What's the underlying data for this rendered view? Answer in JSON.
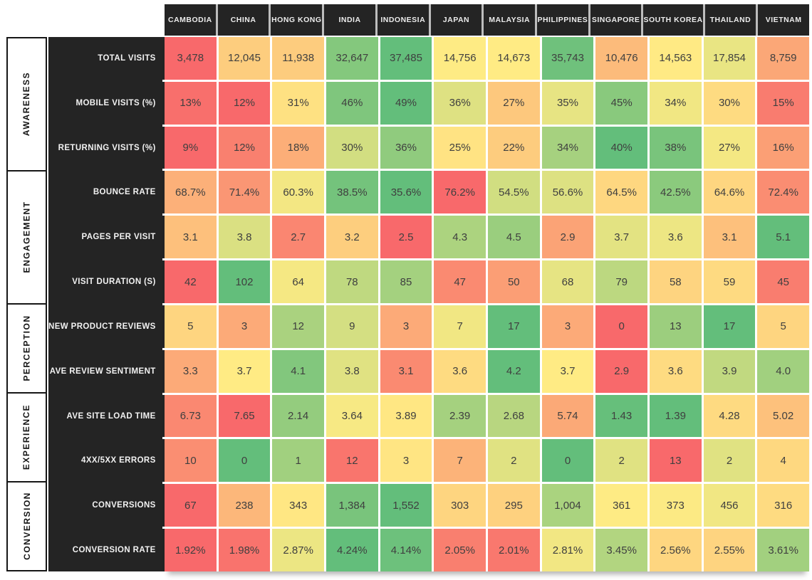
{
  "colors": {
    "background": "#ffffff",
    "panel_black": "#242424",
    "header_divider": "#bdbdbd",
    "category_border": "#161616",
    "cell_text": "#3f3f3f",
    "label_text": "#f2f2f2"
  },
  "chart_data": {
    "type": "heatmap",
    "legend_position": "none",
    "color_scale": {
      "low": "#F8696B",
      "mid": "#FFEB84",
      "high": "#63BE7B",
      "midpoint": "median",
      "note": "per-row scale; rows with better=lower use reversed scale"
    },
    "columns": [
      "CAMBODIA",
      "CHINA",
      "HONG KONG",
      "INDIA",
      "INDONESIA",
      "JAPAN",
      "MALAYSIA",
      "PHILIPPINES",
      "SINGAPORE",
      "SOUTH KOREA",
      "THAILAND",
      "VIETNAM"
    ],
    "groups": [
      {
        "label": "AWARENESS",
        "rows": 3
      },
      {
        "label": "ENGAGEMENT",
        "rows": 3
      },
      {
        "label": "PERCEPTION",
        "rows": 2
      },
      {
        "label": "EXPERIENCE",
        "rows": 2
      },
      {
        "label": "CONVERSION",
        "rows": 2
      }
    ],
    "rows": [
      {
        "group": "AWARENESS",
        "label": "TOTAL VISITS",
        "better": "higher",
        "values": [
          3478,
          12045,
          11938,
          32647,
          37485,
          14756,
          14673,
          35743,
          10476,
          14563,
          17854,
          8759
        ],
        "display": [
          "3,478",
          "12,045",
          "11,938",
          "32,647",
          "37,485",
          "14,756",
          "14,673",
          "35,743",
          "10,476",
          "14,563",
          "17,854",
          "8,759"
        ]
      },
      {
        "group": "AWARENESS",
        "label": "MOBILE VISITS (%)",
        "better": "higher",
        "values": [
          13,
          12,
          31,
          46,
          49,
          36,
          27,
          35,
          45,
          34,
          30,
          15
        ],
        "display": [
          "13%",
          "12%",
          "31%",
          "46%",
          "49%",
          "36%",
          "27%",
          "35%",
          "45%",
          "34%",
          "30%",
          "15%"
        ]
      },
      {
        "group": "AWARENESS",
        "label": "RETURNING VISITS (%)",
        "better": "higher",
        "values": [
          9,
          12,
          18,
          30,
          36,
          25,
          22,
          34,
          40,
          38,
          27,
          16
        ],
        "display": [
          "9%",
          "12%",
          "18%",
          "30%",
          "36%",
          "25%",
          "22%",
          "34%",
          "40%",
          "38%",
          "27%",
          "16%"
        ]
      },
      {
        "group": "ENGAGEMENT",
        "label": "BOUNCE RATE",
        "better": "lower",
        "values": [
          68.7,
          71.4,
          60.3,
          38.5,
          35.6,
          76.2,
          54.5,
          56.6,
          64.5,
          42.5,
          64.6,
          72.4
        ],
        "display": [
          "68.7%",
          "71.4%",
          "60.3%",
          "38.5%",
          "35.6%",
          "76.2%",
          "54.5%",
          "56.6%",
          "64.5%",
          "42.5%",
          "64.6%",
          "72.4%"
        ]
      },
      {
        "group": "ENGAGEMENT",
        "label": "PAGES PER VISIT",
        "better": "higher",
        "values": [
          3.1,
          3.8,
          2.7,
          3.2,
          2.5,
          4.3,
          4.5,
          2.9,
          3.7,
          3.6,
          3.1,
          5.1
        ],
        "display": [
          "3.1",
          "3.8",
          "2.7",
          "3.2",
          "2.5",
          "4.3",
          "4.5",
          "2.9",
          "3.7",
          "3.6",
          "3.1",
          "5.1"
        ]
      },
      {
        "group": "ENGAGEMENT",
        "label": "VISIT DURATION (S)",
        "better": "higher",
        "values": [
          42,
          102,
          64,
          78,
          85,
          47,
          50,
          68,
          79,
          58,
          59,
          45
        ],
        "display": [
          "42",
          "102",
          "64",
          "78",
          "85",
          "47",
          "50",
          "68",
          "79",
          "58",
          "59",
          "45"
        ]
      },
      {
        "group": "PERCEPTION",
        "label": "NEW PRODUCT REVIEWS",
        "better": "higher",
        "values": [
          5,
          3,
          12,
          9,
          3,
          7,
          17,
          3,
          0,
          13,
          17,
          5
        ],
        "display": [
          "5",
          "3",
          "12",
          "9",
          "3",
          "7",
          "17",
          "3",
          "0",
          "13",
          "17",
          "5"
        ]
      },
      {
        "group": "PERCEPTION",
        "label": "AVE REVIEW SENTIMENT",
        "better": "higher",
        "values": [
          3.3,
          3.7,
          4.1,
          3.8,
          3.1,
          3.6,
          4.2,
          3.7,
          2.9,
          3.6,
          3.9,
          4.0
        ],
        "display": [
          "3.3",
          "3.7",
          "4.1",
          "3.8",
          "3.1",
          "3.6",
          "4.2",
          "3.7",
          "2.9",
          "3.6",
          "3.9",
          "4.0"
        ]
      },
      {
        "group": "EXPERIENCE",
        "label": "AVE SITE LOAD TIME",
        "better": "lower",
        "values": [
          6.73,
          7.65,
          2.14,
          3.64,
          3.89,
          2.39,
          2.68,
          5.74,
          1.43,
          1.39,
          4.28,
          5.02
        ],
        "display": [
          "6.73",
          "7.65",
          "2.14",
          "3.64",
          "3.89",
          "2.39",
          "2.68",
          "5.74",
          "1.43",
          "1.39",
          "4.28",
          "5.02"
        ]
      },
      {
        "group": "EXPERIENCE",
        "label": "4XX/5XX ERRORS",
        "better": "lower",
        "values": [
          10,
          0,
          1,
          12,
          3,
          7,
          2,
          0,
          2,
          13,
          2,
          4
        ],
        "display": [
          "10",
          "0",
          "1",
          "12",
          "3",
          "7",
          "2",
          "0",
          "2",
          "13",
          "2",
          "4"
        ]
      },
      {
        "group": "CONVERSION",
        "label": "CONVERSIONS",
        "better": "higher",
        "values": [
          67,
          238,
          343,
          1384,
          1552,
          303,
          295,
          1004,
          361,
          373,
          456,
          316
        ],
        "display": [
          "67",
          "238",
          "343",
          "1,384",
          "1,552",
          "303",
          "295",
          "1,004",
          "361",
          "373",
          "456",
          "316"
        ]
      },
      {
        "group": "CONVERSION",
        "label": "CONVERSION RATE",
        "better": "higher",
        "values": [
          1.92,
          1.98,
          2.87,
          4.24,
          4.14,
          2.05,
          2.01,
          2.81,
          3.45,
          2.56,
          2.55,
          3.61
        ],
        "display": [
          "1.92%",
          "1.98%",
          "2.87%",
          "4.24%",
          "4.14%",
          "2.05%",
          "2.01%",
          "2.81%",
          "3.45%",
          "2.56%",
          "2.55%",
          "3.61%"
        ]
      }
    ]
  }
}
